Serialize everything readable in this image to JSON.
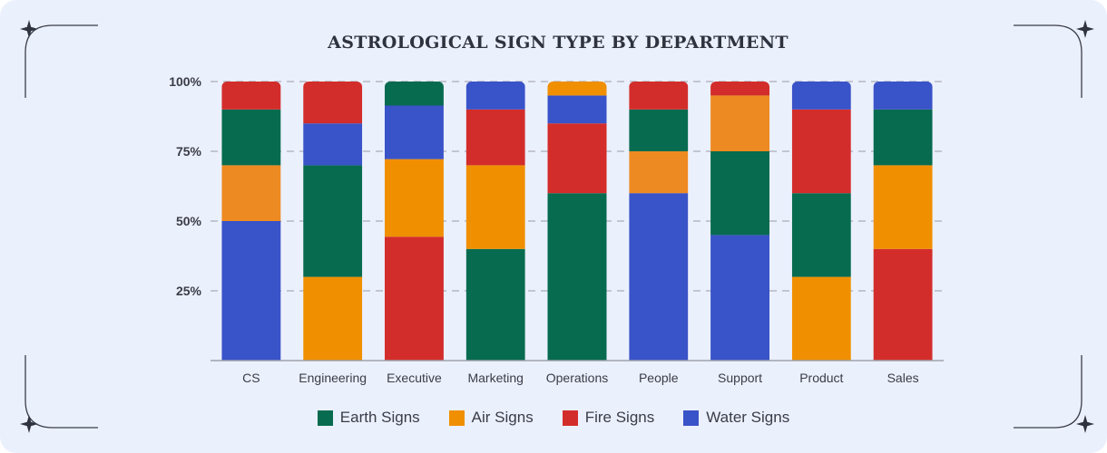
{
  "chart_data": {
    "type": "bar",
    "stacked": true,
    "title": "ASTROLOGICAL SIGN TYPE BY DEPARTMENT",
    "xlabel": "",
    "ylabel": "",
    "ylim": [
      0,
      100
    ],
    "yticks": [
      "25%",
      "50%",
      "75%",
      "100%"
    ],
    "ytick_values": [
      25,
      50,
      75,
      100
    ],
    "grid": "horizontal dashed",
    "legend_position": "bottom",
    "categories": [
      "CS",
      "Engineering",
      "Executive",
      "Marketing",
      "Operations",
      "People",
      "Support",
      "Product",
      "Sales"
    ],
    "series": [
      {
        "name": "Earth Signs",
        "color": "#076b4f"
      },
      {
        "name": "Air Signs",
        "color": "#f08f00"
      },
      {
        "name": "Fire Signs",
        "color": "#d32d2b"
      },
      {
        "name": "Water Signs",
        "color": "#3953c8"
      }
    ],
    "stacks": [
      [
        {
          "series": "Water Signs",
          "value": 50
        },
        {
          "series": "Air Signs",
          "value": 20,
          "color": "#ee8a22"
        },
        {
          "series": "Earth Signs",
          "value": 20
        },
        {
          "series": "Fire Signs",
          "value": 10
        }
      ],
      [
        {
          "series": "Air Signs",
          "value": 30
        },
        {
          "series": "Earth Signs",
          "value": 40
        },
        {
          "series": "Water Signs",
          "value": 15
        },
        {
          "series": "Fire Signs",
          "value": 15
        }
      ],
      [
        {
          "series": "Fire Signs",
          "value": 44.4
        },
        {
          "series": "Air Signs",
          "value": 27.8
        },
        {
          "series": "Water Signs",
          "value": 19.2
        },
        {
          "series": "Earth Signs",
          "value": 8.6
        }
      ],
      [
        {
          "series": "Earth Signs",
          "value": 40
        },
        {
          "series": "Air Signs",
          "value": 30
        },
        {
          "series": "Fire Signs",
          "value": 20
        },
        {
          "series": "Water Signs",
          "value": 10
        }
      ],
      [
        {
          "series": "Earth Signs",
          "value": 60
        },
        {
          "series": "Fire Signs",
          "value": 25
        },
        {
          "series": "Water Signs",
          "value": 10
        },
        {
          "series": "Air Signs",
          "value": 5
        }
      ],
      [
        {
          "series": "Water Signs",
          "value": 60
        },
        {
          "series": "Air Signs",
          "value": 15,
          "color": "#ee8a22"
        },
        {
          "series": "Earth Signs",
          "value": 15
        },
        {
          "series": "Fire Signs",
          "value": 10
        }
      ],
      [
        {
          "series": "Water Signs",
          "value": 45
        },
        {
          "series": "Earth Signs",
          "value": 30
        },
        {
          "series": "Air Signs",
          "value": 20,
          "color": "#ee8a22"
        },
        {
          "series": "Fire Signs",
          "value": 5
        }
      ],
      [
        {
          "series": "Air Signs",
          "value": 30
        },
        {
          "series": "Earth Signs",
          "value": 30
        },
        {
          "series": "Fire Signs",
          "value": 30
        },
        {
          "series": "Water Signs",
          "value": 10
        }
      ],
      [
        {
          "series": "Fire Signs",
          "value": 40
        },
        {
          "series": "Air Signs",
          "value": 30
        },
        {
          "series": "Earth Signs",
          "value": 20
        },
        {
          "series": "Water Signs",
          "value": 10
        }
      ]
    ]
  }
}
